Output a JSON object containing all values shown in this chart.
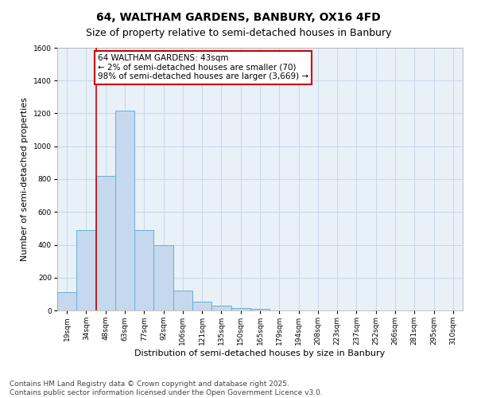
{
  "title_line1": "64, WALTHAM GARDENS, BANBURY, OX16 4FD",
  "title_line2": "Size of property relative to semi-detached houses in Banbury",
  "xlabel": "Distribution of semi-detached houses by size in Banbury",
  "ylabel": "Number of semi-detached properties",
  "categories": [
    "19sqm",
    "34sqm",
    "48sqm",
    "63sqm",
    "77sqm",
    "92sqm",
    "106sqm",
    "121sqm",
    "135sqm",
    "150sqm",
    "165sqm",
    "179sqm",
    "194sqm",
    "208sqm",
    "223sqm",
    "237sqm",
    "252sqm",
    "266sqm",
    "281sqm",
    "295sqm",
    "310sqm"
  ],
  "values": [
    110,
    490,
    820,
    1215,
    490,
    400,
    120,
    55,
    30,
    15,
    10,
    0,
    0,
    0,
    0,
    0,
    0,
    0,
    0,
    0,
    0
  ],
  "bar_color": "#c5d8ee",
  "bar_edge_color": "#6baed6",
  "vline_x_index": 1,
  "vline_color": "#cc0000",
  "annotation_text_line1": "64 WALTHAM GARDENS: 43sqm",
  "annotation_text_line2": "← 2% of semi-detached houses are smaller (70)",
  "annotation_text_line3": "98% of semi-detached houses are larger (3,669) →",
  "annotation_box_color": "#cc0000",
  "annotation_fill": "#ffffff",
  "ylim": [
    0,
    1600
  ],
  "yticks": [
    0,
    200,
    400,
    600,
    800,
    1000,
    1200,
    1400,
    1600
  ],
  "grid_color": "#c8d8e8",
  "bg_color": "#e8f0f8",
  "fig_bg_color": "#ffffff",
  "footer_line1": "Contains HM Land Registry data © Crown copyright and database right 2025.",
  "footer_line2": "Contains public sector information licensed under the Open Government Licence v3.0.",
  "title_fontsize": 10,
  "subtitle_fontsize": 9,
  "xlabel_fontsize": 8,
  "ylabel_fontsize": 8,
  "tick_fontsize": 6.5,
  "annotation_fontsize": 7.5,
  "footer_fontsize": 6.5
}
